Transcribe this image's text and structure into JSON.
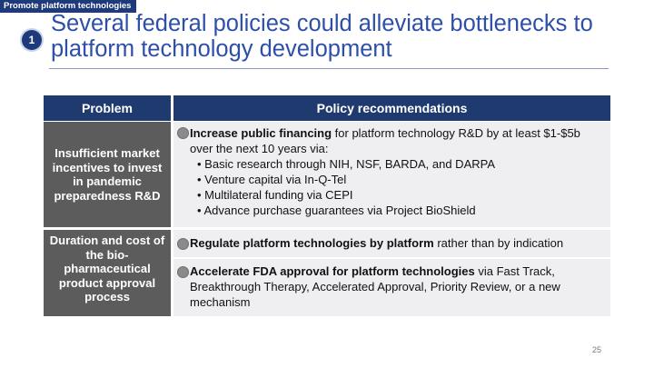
{
  "section_tag": "Promote platform technologies",
  "badge_number": "1",
  "title": "Several federal policies could alleviate bottlenecks to platform technology development",
  "table": {
    "headers": {
      "problem": "Problem",
      "policy": "Policy recommendations"
    },
    "rows": [
      {
        "problem": "Insufficient market incentives to invest in pandemic preparedness R&D",
        "policies": [
          {
            "bold": "Increase public financing",
            "text": " for platform technology R&D by at least $1-$5b over the next 10 years via:",
            "subitems": [
              "Basic research through NIH, NSF, BARDA, and DARPA",
              "Venture capital via In-Q-Tel",
              "Multilateral funding via CEPI",
              "Advance purchase guarantees via Project BioShield"
            ]
          }
        ]
      },
      {
        "problem": "Duration and cost of the bio-pharmaceutical product approval process",
        "policies": [
          {
            "bold": "Regulate platform technologies by platform",
            "text": " rather than by indication"
          },
          {
            "bold": "Accelerate FDA approval for platform technologies",
            "text": " via Fast Track, Breakthrough Therapy, Accelerated Approval, Priority Review, or a new mechanism"
          }
        ]
      }
    ]
  },
  "page_number": "25",
  "colors": {
    "brand_navy": "#1f3a7a",
    "title_blue": "#2d4fa8",
    "problem_gray": "#5c5c5c",
    "policy_bg": "#efeff1"
  }
}
